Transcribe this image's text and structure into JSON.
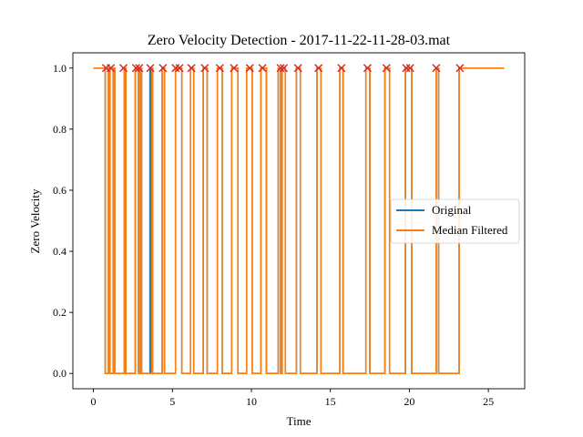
{
  "chart_data": {
    "type": "line",
    "title": "Zero Velocity Detection - 2017-11-22-11-28-03.mat",
    "xlabel": "Time",
    "ylabel": "Zero Velocity",
    "xlim": [
      -1.3,
      27.3
    ],
    "ylim": [
      -0.05,
      1.05
    ],
    "xticks": [
      0,
      5,
      10,
      15,
      20,
      25
    ],
    "yticks": [
      0.0,
      0.2,
      0.4,
      0.6,
      0.8,
      1.0
    ],
    "xtick_labels": [
      "0",
      "5",
      "10",
      "15",
      "20",
      "25"
    ],
    "ytick_labels": [
      "0.0",
      "0.2",
      "0.4",
      "0.6",
      "0.8",
      "1.0"
    ],
    "zero_intervals": [
      [
        0.75,
        0.95
      ],
      [
        1.05,
        1.25
      ],
      [
        1.35,
        1.95
      ],
      [
        2.05,
        2.65
      ],
      [
        2.85,
        2.95
      ],
      [
        3.05,
        3.7
      ],
      [
        3.75,
        4.35
      ],
      [
        4.5,
        5.2
      ],
      [
        5.6,
        6.15
      ],
      [
        6.35,
        6.95
      ],
      [
        7.2,
        7.85
      ],
      [
        8.15,
        8.75
      ],
      [
        9.15,
        9.7
      ],
      [
        10.05,
        10.6
      ],
      [
        10.95,
        11.7
      ],
      [
        11.85,
        11.95
      ],
      [
        12.15,
        12.85
      ],
      [
        13.1,
        14.15
      ],
      [
        14.4,
        15.6
      ],
      [
        15.8,
        17.25
      ],
      [
        17.5,
        18.45
      ],
      [
        18.75,
        19.75
      ],
      [
        20.15,
        21.7
      ],
      [
        21.85,
        23.15
      ]
    ],
    "original_extra_zero": [
      [
        3.58,
        3.63
      ]
    ],
    "x_end": 26.0,
    "series": [
      {
        "name": "Original",
        "color": "#1f77b4"
      },
      {
        "name": "Median Filtered",
        "color": "#ff7f0e"
      }
    ],
    "markers": {
      "color": "#d62728",
      "shape": "x",
      "x": [
        0.8,
        1.1,
        1.9,
        2.7,
        2.9,
        3.6,
        4.4,
        5.2,
        5.45,
        6.2,
        7.05,
        8.0,
        8.9,
        9.9,
        10.7,
        11.85,
        12.05,
        12.95,
        14.25,
        15.7,
        17.35,
        18.55,
        19.8,
        20.05,
        21.7,
        23.2
      ],
      "y": 1.0
    },
    "legend": {
      "position": "center-right",
      "entries": [
        "Original",
        "Median Filtered"
      ]
    }
  }
}
